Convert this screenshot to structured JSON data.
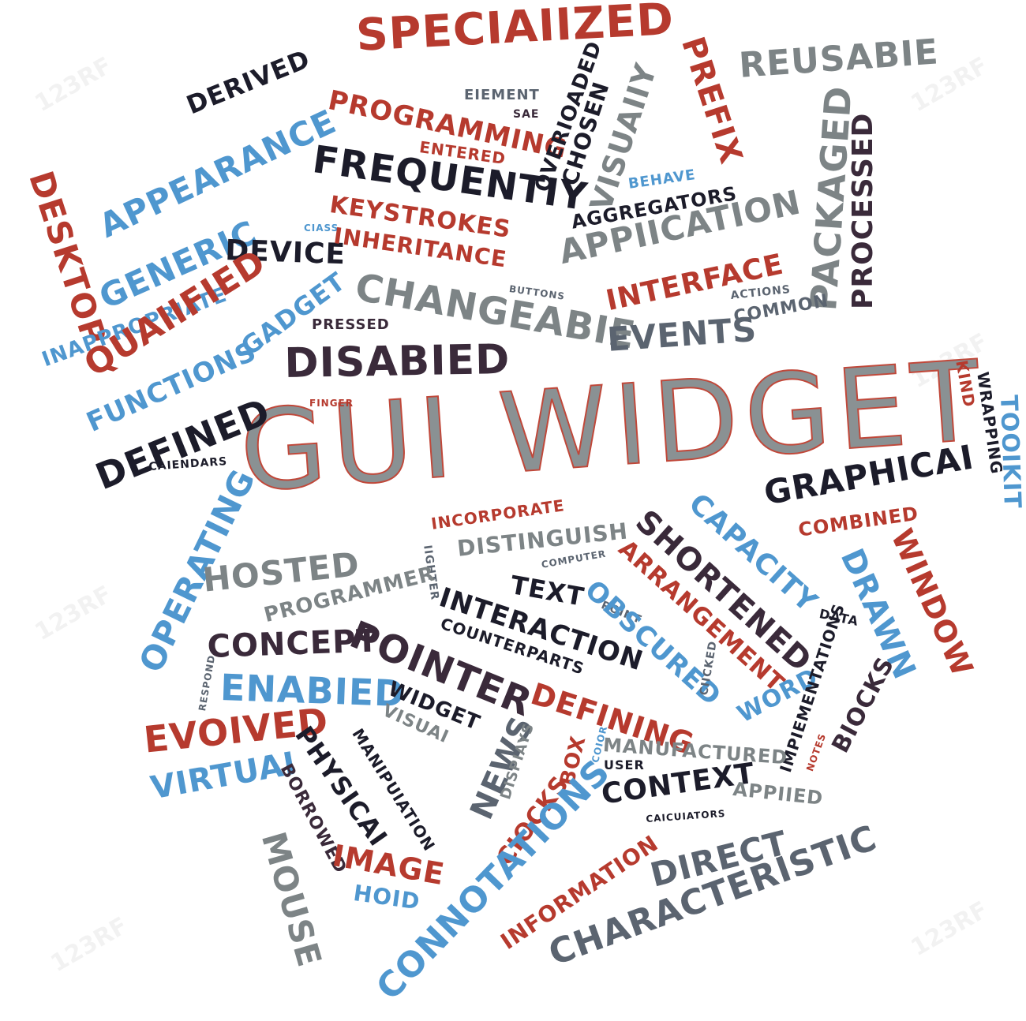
{
  "title": "GUI WIDGET",
  "watermark": "123RF",
  "colors": {
    "red": "#b63a2e",
    "blue": "#4f97cf",
    "dark": "#1c1c2a",
    "gray": "#7d8486",
    "slate": "#5b6470",
    "plum": "#3a2a3a"
  },
  "words": [
    {
      "key": "specialized",
      "text": "SPECIAIIZED",
      "color": "red"
    },
    {
      "key": "reusable",
      "text": "REUSABIE",
      "color": "gray"
    },
    {
      "key": "prefix",
      "text": "PREFIX",
      "color": "red"
    },
    {
      "key": "derived",
      "text": "DERIVED",
      "color": "dark"
    },
    {
      "key": "programming",
      "text": "PROGRAMMING",
      "color": "red"
    },
    {
      "key": "element",
      "text": "EIEMENT",
      "color": "slate"
    },
    {
      "key": "sae",
      "text": "SAE",
      "color": "plum"
    },
    {
      "key": "overloaded",
      "text": "OVERIOADED",
      "color": "dark"
    },
    {
      "key": "chosen",
      "text": "CHOSEN",
      "color": "dark"
    },
    {
      "key": "visually",
      "text": "VISUAIIY",
      "color": "gray"
    },
    {
      "key": "packaged",
      "text": "PACKAGED",
      "color": "gray"
    },
    {
      "key": "processed",
      "text": "PROCESSED",
      "color": "plum"
    },
    {
      "key": "desktop",
      "text": "DESKTOP",
      "color": "red"
    },
    {
      "key": "appearance",
      "text": "APPEARANCE",
      "color": "blue"
    },
    {
      "key": "entered",
      "text": "ENTERED",
      "color": "red"
    },
    {
      "key": "frequently",
      "text": "FREQUENTIY",
      "color": "dark"
    },
    {
      "key": "behave",
      "text": "BEHAVE",
      "color": "blue"
    },
    {
      "key": "aggregators",
      "text": "AGGREGATORS",
      "color": "dark"
    },
    {
      "key": "generic",
      "text": "GENERIC",
      "color": "blue"
    },
    {
      "key": "keystrokes",
      "text": "KEYSTROKES",
      "color": "red"
    },
    {
      "key": "class",
      "text": "CIASS",
      "color": "blue"
    },
    {
      "key": "device",
      "text": "DEVICE",
      "color": "dark"
    },
    {
      "key": "inheritance",
      "text": "INHERITANCE",
      "color": "red"
    },
    {
      "key": "application",
      "text": "APPIICATION",
      "color": "gray"
    },
    {
      "key": "inappropriate",
      "text": "INAPPROPRIATE",
      "color": "blue"
    },
    {
      "key": "qualified",
      "text": "QUAIIFIED",
      "color": "red"
    },
    {
      "key": "changeable",
      "text": "CHANGEABIE",
      "color": "gray"
    },
    {
      "key": "buttons",
      "text": "BUTTONS",
      "color": "slate"
    },
    {
      "key": "interface",
      "text": "INTERFACE",
      "color": "red"
    },
    {
      "key": "actions",
      "text": "ACTIONS",
      "color": "slate"
    },
    {
      "key": "gadget",
      "text": "GADGET",
      "color": "blue"
    },
    {
      "key": "pressed",
      "text": "PRESSED",
      "color": "plum"
    },
    {
      "key": "events",
      "text": "EVENTS",
      "color": "slate"
    },
    {
      "key": "common",
      "text": "COMMON",
      "color": "slate"
    },
    {
      "key": "functions",
      "text": "FUNCTIONS",
      "color": "blue"
    },
    {
      "key": "disabled",
      "text": "DISABIED",
      "color": "plum"
    },
    {
      "key": "finger",
      "text": "FINGER",
      "color": "red"
    },
    {
      "key": "defined",
      "text": "DEFINED",
      "color": "dark"
    },
    {
      "key": "kind",
      "text": "KIND",
      "color": "red"
    },
    {
      "key": "wrapping",
      "text": "WRAPPING",
      "color": "dark"
    },
    {
      "key": "toolkit",
      "text": "TOOIKIT",
      "color": "blue"
    },
    {
      "key": "calendars",
      "text": "CAIENDARS",
      "color": "dark"
    },
    {
      "key": "graphical",
      "text": "GRAPHICAI",
      "color": "dark"
    },
    {
      "key": "operating",
      "text": "OPERATING",
      "color": "blue"
    },
    {
      "key": "incorporate",
      "text": "INCORPORATE",
      "color": "red"
    },
    {
      "key": "lighter",
      "text": "IIGHTER",
      "color": "slate"
    },
    {
      "key": "distinguish",
      "text": "DISTINGUISH",
      "color": "gray"
    },
    {
      "key": "shortened",
      "text": "SHORTENED",
      "color": "plum"
    },
    {
      "key": "capacity",
      "text": "CAPACITY",
      "color": "blue"
    },
    {
      "key": "combined",
      "text": "COMBINED",
      "color": "red"
    },
    {
      "key": "window",
      "text": "WINDOW",
      "color": "red"
    },
    {
      "key": "drawn",
      "text": "DRAWN",
      "color": "blue"
    },
    {
      "key": "computer",
      "text": "COMPUTER",
      "color": "slate"
    },
    {
      "key": "arrangement",
      "text": "ARRANGEMENT",
      "color": "red"
    },
    {
      "key": "hosted",
      "text": "HOSTED",
      "color": "gray"
    },
    {
      "key": "programmer",
      "text": "PROGRAMMER",
      "color": "gray"
    },
    {
      "key": "text",
      "text": "TEXT",
      "color": "dark"
    },
    {
      "key": "interaction",
      "text": "INTERACTION",
      "color": "dark"
    },
    {
      "key": "point",
      "text": "POINT",
      "color": "slate"
    },
    {
      "key": "obscured",
      "text": "OBSCURED",
      "color": "blue"
    },
    {
      "key": "data",
      "text": "DATA",
      "color": "dark"
    },
    {
      "key": "pointer",
      "text": "POINTER",
      "color": "plum"
    },
    {
      "key": "counterparts",
      "text": "COUNTERPARTS",
      "color": "dark"
    },
    {
      "key": "concept",
      "text": "CONCEPT",
      "color": "plum"
    },
    {
      "key": "enabled",
      "text": "ENABIED",
      "color": "blue"
    },
    {
      "key": "respond",
      "text": "RESPOND",
      "color": "slate"
    },
    {
      "key": "widget",
      "text": "WIDGET",
      "color": "dark"
    },
    {
      "key": "defining",
      "text": "DEFINING",
      "color": "red"
    },
    {
      "key": "clicked",
      "text": "CIICKED",
      "color": "slate"
    },
    {
      "key": "word",
      "text": "WORD",
      "color": "blue"
    },
    {
      "key": "implementations",
      "text": "IMPIEMENTATIONS",
      "color": "dark"
    },
    {
      "key": "blocks",
      "text": "BIOCKS",
      "color": "plum"
    },
    {
      "key": "evolved",
      "text": "EVOIVED",
      "color": "red"
    },
    {
      "key": "visual",
      "text": "VISUAI",
      "color": "gray"
    },
    {
      "key": "physical",
      "text": "PHYSICAI",
      "color": "dark"
    },
    {
      "key": "manipulation",
      "text": "MANIPUIATION",
      "color": "dark"
    },
    {
      "key": "news",
      "text": "NEWS",
      "color": "slate"
    },
    {
      "key": "displays",
      "text": "DISPIAYS",
      "color": "gray"
    },
    {
      "key": "box",
      "text": "BOX",
      "color": "red"
    },
    {
      "key": "color",
      "text": "COIOR",
      "color": "blue"
    },
    {
      "key": "manufactured",
      "text": "MANUFACTURED",
      "color": "gray"
    },
    {
      "key": "notes",
      "text": "NOTES",
      "color": "red"
    },
    {
      "key": "user",
      "text": "USER",
      "color": "dark"
    },
    {
      "key": "virtual",
      "text": "VIRTUAI",
      "color": "blue"
    },
    {
      "key": "borrowed",
      "text": "BORROWED",
      "color": "plum"
    },
    {
      "key": "context",
      "text": "CONTEXT",
      "color": "dark"
    },
    {
      "key": "applied",
      "text": "APPIIED",
      "color": "gray"
    },
    {
      "key": "calculators",
      "text": "CAICUIATORS",
      "color": "dark"
    },
    {
      "key": "mouse",
      "text": "MOUSE",
      "color": "gray"
    },
    {
      "key": "clocks",
      "text": "CIOCKS",
      "color": "red"
    },
    {
      "key": "connotations",
      "text": "CONNOTATIONS",
      "color": "blue"
    },
    {
      "key": "image",
      "text": "IMAGE",
      "color": "red"
    },
    {
      "key": "hold",
      "text": "HOID",
      "color": "blue"
    },
    {
      "key": "information",
      "text": "INFORMATION",
      "color": "red"
    },
    {
      "key": "direct",
      "text": "DIRECT",
      "color": "slate"
    },
    {
      "key": "characteristic",
      "text": "CHARACTERISTIC",
      "color": "slate"
    }
  ]
}
